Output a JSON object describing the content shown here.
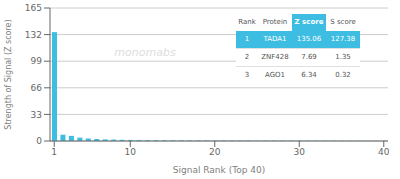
{
  "chart_data": {
    "type": "bar",
    "xlabel": "Signal Rank (Top 40)",
    "ylabel": "Strength of Signal (Z score)",
    "x": [
      1,
      2,
      3,
      4,
      5,
      6,
      7,
      8,
      9,
      10,
      11,
      12,
      13,
      14,
      15,
      16,
      17,
      18,
      19,
      20,
      21,
      22,
      23,
      24,
      25,
      26,
      27,
      28,
      29,
      30,
      31,
      32,
      33,
      34,
      35,
      36,
      37,
      38,
      39,
      40
    ],
    "values": [
      135.06,
      7.69,
      6.34,
      4.2,
      3.1,
      2.5,
      2.0,
      1.8,
      1.5,
      1.3,
      1.1,
      1.0,
      0.9,
      0.85,
      0.8,
      0.75,
      0.7,
      0.65,
      0.6,
      0.58,
      0.55,
      0.52,
      0.5,
      0.48,
      0.46,
      0.44,
      0.42,
      0.4,
      0.38,
      0.36,
      0.34,
      0.32,
      0.3,
      0.28,
      0.26,
      0.24,
      0.22,
      0.2,
      0.18,
      0.16
    ],
    "color": "#3dbde2",
    "xlim": [
      0.5,
      40.5
    ],
    "xticks": [
      1,
      10,
      20,
      30,
      40
    ],
    "ylim": [
      0,
      165
    ],
    "yticks": [
      0,
      33,
      66,
      99,
      132,
      165
    ],
    "grid": true,
    "annotations": [
      "monomabs"
    ],
    "table": [
      [
        "Rank",
        "Protein",
        "Z score",
        "S score"
      ],
      [
        "1",
        "TADA1",
        "135.06",
        "127.38"
      ],
      [
        "2",
        "ZNF428",
        "7.69",
        "1.35"
      ],
      [
        "3",
        "AGO1",
        "6.34",
        "0.32"
      ]
    ]
  }
}
